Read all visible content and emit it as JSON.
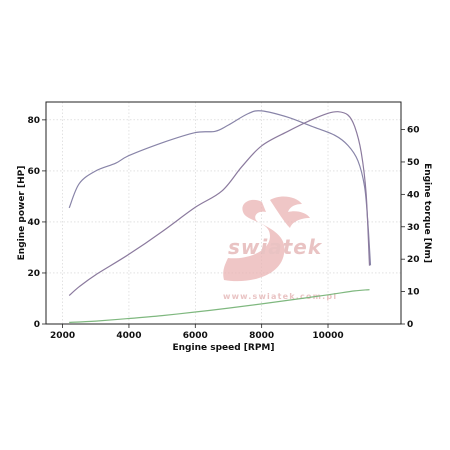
{
  "chart_data": {
    "type": "line",
    "xlabel": "Engine speed [RPM]",
    "ylabel_left": "Engine power [HP]",
    "ylabel_right": "Engine torque [Nm]",
    "xlim": [
      1500,
      12200
    ],
    "ylim_left": [
      0,
      87
    ],
    "ylim_right": [
      0,
      68.5
    ],
    "x_ticks": [
      2000,
      4000,
      6000,
      8000,
      10000
    ],
    "y_ticks_left": [
      0,
      20,
      40,
      60,
      80
    ],
    "y_ticks_right": [
      0,
      10,
      20,
      30,
      40,
      50,
      60
    ],
    "grid": true,
    "series": [
      {
        "axis": "left",
        "color": "#8884a8",
        "points": [
          [
            2200,
            45.5
          ],
          [
            2500,
            55
          ],
          [
            3000,
            60
          ],
          [
            3600,
            63
          ],
          [
            4000,
            66
          ],
          [
            5000,
            71
          ],
          [
            6000,
            75
          ],
          [
            6600,
            75.5
          ],
          [
            7000,
            78
          ],
          [
            7600,
            82.5
          ],
          [
            8000,
            83.5
          ],
          [
            8800,
            81
          ],
          [
            9500,
            77.5
          ],
          [
            10200,
            74
          ],
          [
            10600,
            70
          ],
          [
            10900,
            64
          ],
          [
            11100,
            54
          ],
          [
            11200,
            40
          ],
          [
            11280,
            23
          ]
        ]
      },
      {
        "axis": "right",
        "color": "#8b7a9e",
        "points": [
          [
            2200,
            8.8
          ],
          [
            2500,
            11.5
          ],
          [
            3000,
            15.2
          ],
          [
            4000,
            21.5
          ],
          [
            5000,
            28.5
          ],
          [
            6000,
            36
          ],
          [
            6800,
            41
          ],
          [
            7400,
            48.5
          ],
          [
            8000,
            55
          ],
          [
            8800,
            59.5
          ],
          [
            9500,
            63
          ],
          [
            10000,
            65
          ],
          [
            10300,
            65.5
          ],
          [
            10600,
            64.5
          ],
          [
            10800,
            61
          ],
          [
            11000,
            53
          ],
          [
            11150,
            40
          ],
          [
            11250,
            18
          ]
        ]
      },
      {
        "axis": "right",
        "color": "#7fb87f",
        "points": [
          [
            2200,
            0.5
          ],
          [
            3000,
            0.9
          ],
          [
            4000,
            1.7
          ],
          [
            5000,
            2.6
          ],
          [
            6000,
            3.7
          ],
          [
            7000,
            4.9
          ],
          [
            8000,
            6.2
          ],
          [
            9000,
            7.6
          ],
          [
            10000,
            9.0
          ],
          [
            10800,
            10.2
          ],
          [
            11250,
            10.6
          ]
        ]
      }
    ]
  },
  "watermark": {
    "brand": "swiatek",
    "url": "www.swiatek.com.pl",
    "color": "#e8b8b8"
  }
}
